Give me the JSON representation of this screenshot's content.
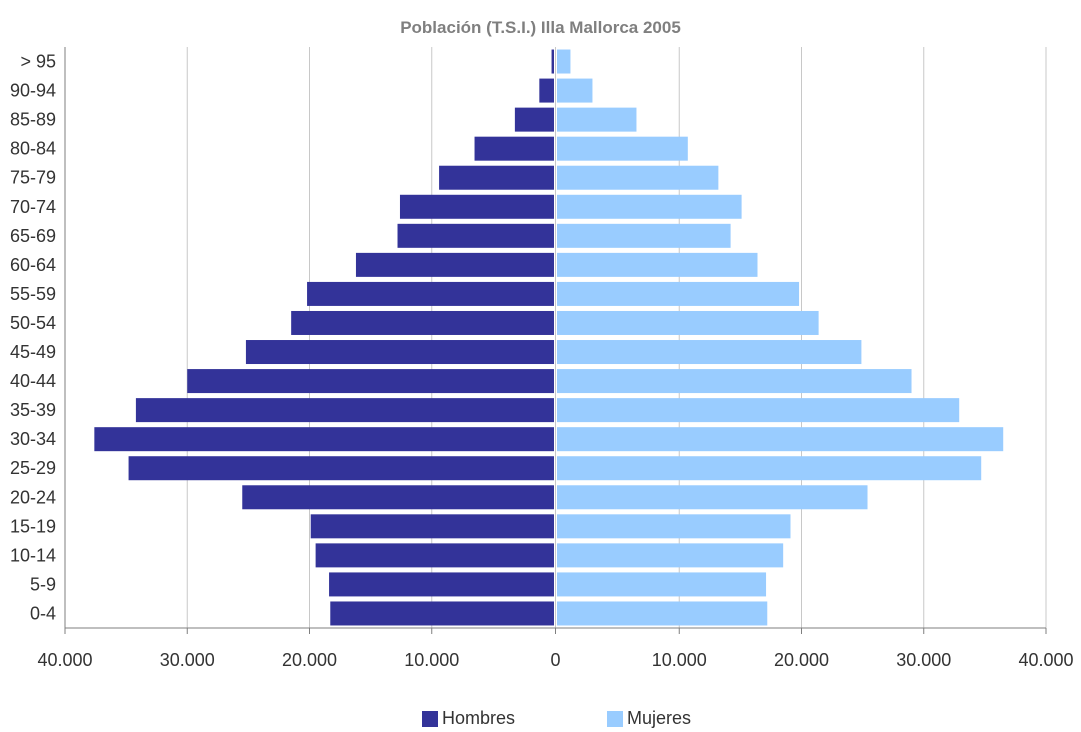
{
  "chart_data": {
    "type": "bar",
    "orientation": "horizontal",
    "title": "Población (T.S.I.) Illa Mallorca 2005",
    "categories": [
      "0-4",
      "5-9",
      "10-14",
      "15-19",
      "20-24",
      "25-29",
      "30-34",
      "35-39",
      "40-44",
      "45-49",
      "50-54",
      "55-59",
      "60-64",
      "65-69",
      "70-74",
      "75-79",
      "80-84",
      "85-89",
      "90-94",
      "> 95"
    ],
    "series": [
      {
        "name": "Hombres",
        "color": "#333399",
        "side": "left",
        "values": [
          18300,
          18400,
          19500,
          19900,
          25500,
          34800,
          37600,
          34200,
          30000,
          25200,
          21500,
          20200,
          16200,
          12800,
          12600,
          9400,
          6500,
          3200,
          1200,
          200
        ]
      },
      {
        "name": "Mujeres",
        "color": "#99ccff",
        "side": "right",
        "values": [
          17200,
          17100,
          18500,
          19100,
          25400,
          34700,
          36500,
          32900,
          29000,
          24900,
          21400,
          19800,
          16400,
          14200,
          15100,
          13200,
          10700,
          6500,
          2900,
          1100
        ]
      }
    ],
    "xlim": [
      -40000,
      40000
    ],
    "x_ticks": [
      -40000,
      -30000,
      -20000,
      -10000,
      0,
      10000,
      20000,
      30000,
      40000
    ],
    "x_tick_labels": [
      "40.000",
      "30.000",
      "20.000",
      "10.000",
      "0",
      "10.000",
      "20.000",
      "30.000",
      "40.000"
    ],
    "grid": "vertical",
    "legend_position": "bottom"
  }
}
